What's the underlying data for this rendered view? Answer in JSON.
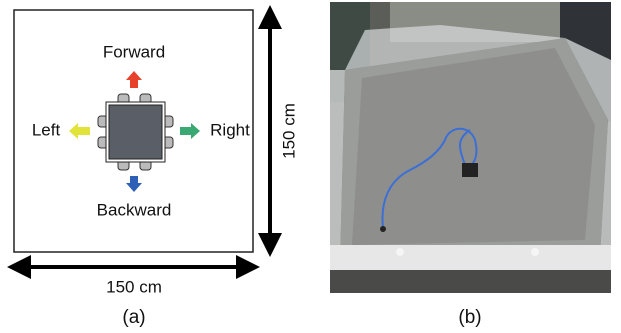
{
  "panel_a": {
    "directions": {
      "forward": "Forward",
      "left": "Left",
      "right": "Right",
      "backward": "Backward"
    },
    "width_label": "150 cm",
    "height_label": "150 cm",
    "caption": "(a)"
  },
  "panel_b": {
    "caption": "(b)"
  }
}
